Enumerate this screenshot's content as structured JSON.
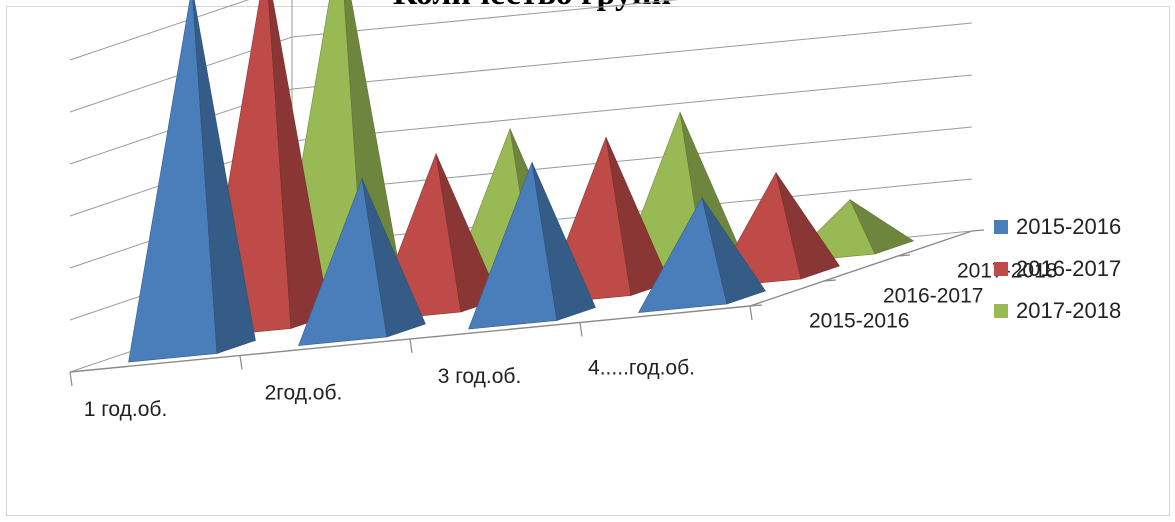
{
  "chart_data": {
    "type": "bar",
    "subtype": "3d-pyramid",
    "title": "Количество групп",
    "categories": [
      "1 год.об.",
      "2год.об.",
      "3 год.об.",
      "4.....год.об."
    ],
    "depth_categories": [
      "2015-2016",
      "2016-2017",
      "2017-2018"
    ],
    "series": [
      {
        "name": "2015-2016",
        "color": "#4a7ebb",
        "values": [
          7,
          3,
          3,
          2
        ]
      },
      {
        "name": "2016-2017",
        "color": "#be4b48",
        "values": [
          7,
          3,
          3,
          2
        ]
      },
      {
        "name": "2017-2018",
        "color": "#98b954",
        "values": [
          7,
          3,
          3,
          1
        ]
      }
    ],
    "grid": true,
    "legend_position": "right"
  }
}
